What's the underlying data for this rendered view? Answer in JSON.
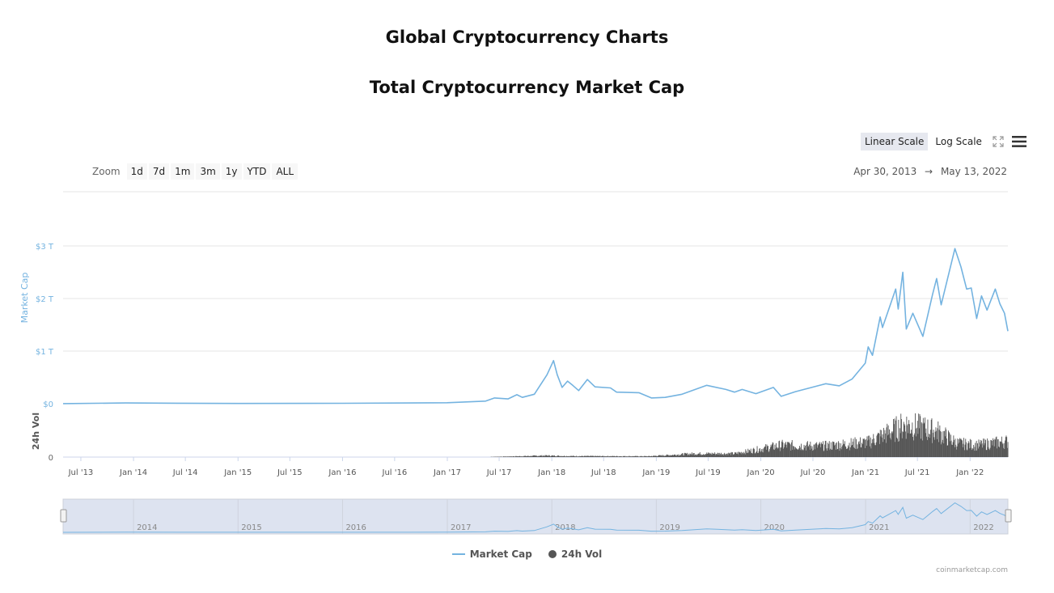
{
  "page": {
    "title": "Global Cryptocurrency Charts",
    "subtitle": "Total Cryptocurrency Market Cap",
    "credit": "coinmarketcap.com"
  },
  "controls": {
    "scale_buttons": [
      {
        "label": "Linear Scale",
        "active": true
      },
      {
        "label": "Log Scale",
        "active": false
      }
    ],
    "zoom_label": "Zoom",
    "zoom_buttons": [
      "1d",
      "7d",
      "1m",
      "3m",
      "1y",
      "YTD",
      "ALL"
    ],
    "range_from": "Apr 30, 2013",
    "range_arrow": "→",
    "range_to": "May 13, 2022",
    "icons": [
      "fullscreen-icon",
      "menu-icon"
    ]
  },
  "legend": {
    "market_cap": "Market Cap",
    "volume": "24h Vol"
  },
  "colors": {
    "market_cap": "#74b3e0",
    "volume": "#555555",
    "navigator_fill": "#dde3f0"
  },
  "chart_data": {
    "type": "line",
    "title": "Total Cryptocurrency Market Cap",
    "x_ticks": [
      "Jul '13",
      "Jan '14",
      "Jul '14",
      "Jan '15",
      "Jul '15",
      "Jan '16",
      "Jul '16",
      "Jan '17",
      "Jul '17",
      "Jan '18",
      "Jul '18",
      "Jan '19",
      "Jul '19",
      "Jan '20",
      "Jul '20",
      "Jan '21",
      "Jul '21",
      "Jan '22"
    ],
    "y_label": "Market Cap",
    "y_ticks": [
      "$0",
      "$1 T",
      "$2 T",
      "$3 T"
    ],
    "ylim_trillions": [
      0,
      3
    ],
    "volume_label": "24h Vol",
    "volume_ticks": [
      "0"
    ],
    "navigator_years": [
      "2014",
      "2015",
      "2016",
      "2017",
      "2018",
      "2019",
      "2020",
      "2021",
      "2022"
    ],
    "series": [
      {
        "name": "Market Cap",
        "unit": "USD trillions",
        "points": [
          [
            "2013-04-30",
            0.0015
          ],
          [
            "2013-12-04",
            0.014
          ],
          [
            "2014-06-01",
            0.009
          ],
          [
            "2015-01-01",
            0.005
          ],
          [
            "2016-01-01",
            0.007
          ],
          [
            "2016-12-31",
            0.018
          ],
          [
            "2017-05-15",
            0.05
          ],
          [
            "2017-06-15",
            0.11
          ],
          [
            "2017-08-01",
            0.09
          ],
          [
            "2017-09-01",
            0.17
          ],
          [
            "2017-09-20",
            0.12
          ],
          [
            "2017-11-01",
            0.18
          ],
          [
            "2017-12-15",
            0.55
          ],
          [
            "2018-01-07",
            0.82
          ],
          [
            "2018-01-20",
            0.55
          ],
          [
            "2018-02-06",
            0.31
          ],
          [
            "2018-02-25",
            0.43
          ],
          [
            "2018-03-15",
            0.35
          ],
          [
            "2018-04-05",
            0.25
          ],
          [
            "2018-05-05",
            0.46
          ],
          [
            "2018-06-01",
            0.32
          ],
          [
            "2018-07-25",
            0.3
          ],
          [
            "2018-08-15",
            0.22
          ],
          [
            "2018-11-01",
            0.21
          ],
          [
            "2018-12-15",
            0.11
          ],
          [
            "2019-02-01",
            0.12
          ],
          [
            "2019-04-01",
            0.18
          ],
          [
            "2019-06-26",
            0.35
          ],
          [
            "2019-09-01",
            0.27
          ],
          [
            "2019-10-01",
            0.22
          ],
          [
            "2019-10-28",
            0.27
          ],
          [
            "2019-12-15",
            0.19
          ],
          [
            "2020-02-14",
            0.31
          ],
          [
            "2020-03-12",
            0.14
          ],
          [
            "2020-05-01",
            0.23
          ],
          [
            "2020-08-15",
            0.38
          ],
          [
            "2020-10-01",
            0.34
          ],
          [
            "2020-11-15",
            0.47
          ],
          [
            "2020-12-31",
            0.77
          ],
          [
            "2021-01-10",
            1.08
          ],
          [
            "2021-01-25",
            0.92
          ],
          [
            "2021-02-21",
            1.65
          ],
          [
            "2021-03-01",
            1.45
          ],
          [
            "2021-04-16",
            2.18
          ],
          [
            "2021-04-25",
            1.8
          ],
          [
            "2021-05-11",
            2.5
          ],
          [
            "2021-05-23",
            1.42
          ],
          [
            "2021-06-15",
            1.72
          ],
          [
            "2021-07-20",
            1.28
          ],
          [
            "2021-08-23",
            2.08
          ],
          [
            "2021-09-06",
            2.38
          ],
          [
            "2021-09-22",
            1.88
          ],
          [
            "2021-11-09",
            2.95
          ],
          [
            "2021-11-30",
            2.6
          ],
          [
            "2021-12-20",
            2.18
          ],
          [
            "2022-01-05",
            2.2
          ],
          [
            "2022-01-24",
            1.62
          ],
          [
            "2022-02-10",
            2.05
          ],
          [
            "2022-03-01",
            1.78
          ],
          [
            "2022-03-30",
            2.18
          ],
          [
            "2022-04-15",
            1.9
          ],
          [
            "2022-05-01",
            1.72
          ],
          [
            "2022-05-13",
            1.38
          ]
        ]
      },
      {
        "name": "24h Vol",
        "unit": "USD billions (estimated envelope)",
        "points": [
          [
            "2013-04-30",
            0.1
          ],
          [
            "2017-06-01",
            2
          ],
          [
            "2017-12-15",
            15
          ],
          [
            "2018-03-01",
            10
          ],
          [
            "2018-12-01",
            8
          ],
          [
            "2019-05-15",
            35
          ],
          [
            "2019-10-01",
            35
          ],
          [
            "2020-03-12",
            120
          ],
          [
            "2020-08-01",
            110
          ],
          [
            "2021-01-10",
            150
          ],
          [
            "2021-05-19",
            330
          ],
          [
            "2021-09-07",
            260
          ],
          [
            "2021-11-15",
            140
          ],
          [
            "2022-01-24",
            120
          ],
          [
            "2022-05-13",
            160
          ]
        ]
      }
    ]
  }
}
